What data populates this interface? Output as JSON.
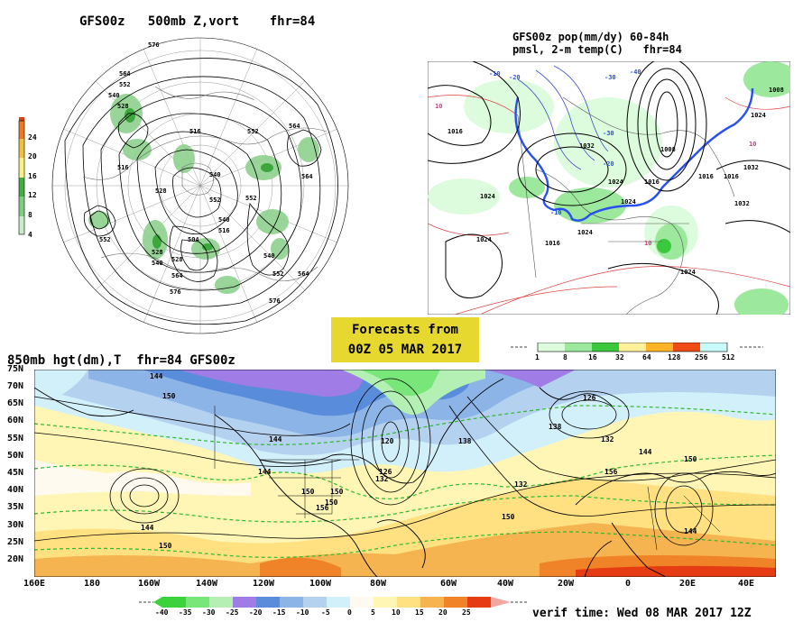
{
  "panel_500mb": {
    "title": "GFS00z   500mb Z,vort    fhr=84",
    "colorbar_ticks": [
      "24",
      "20",
      "16",
      "12",
      "8",
      "4"
    ],
    "contour_labels": [
      "576",
      "564",
      "552",
      "540",
      "528",
      "516",
      "504",
      "516",
      "528",
      "540",
      "552",
      "564",
      "576",
      "564",
      "552",
      "540",
      "528",
      "552",
      "552",
      "552",
      "540",
      "516",
      "528",
      "540",
      "564",
      "576",
      "564"
    ]
  },
  "panel_precip": {
    "title_line1": "GFS00z pop(mm/dy) 60-84h",
    "title_line2": "pmsl, 2-m temp(C)   fhr=84",
    "colorbar_ticks": [
      "1",
      "8",
      "16",
      "32",
      "64",
      "128",
      "256",
      "512"
    ],
    "colorbar_colors": [
      "#ddfcdd",
      "#9ce89c",
      "#3cc83c",
      "#fff09c",
      "#ffb428",
      "#f04b14",
      "#c8fafa"
    ],
    "contour_labels": [
      "1008",
      "1024",
      "1016",
      "1032",
      "1024",
      "1016",
      "1024",
      "1016",
      "1024",
      "1008",
      "1016",
      "1024",
      "1032",
      "1024",
      "1016",
      "1032",
      "1024"
    ],
    "temp_labels": [
      "-10",
      "-20",
      "-30",
      "-40",
      "-10",
      "10",
      "10",
      "10",
      "-20",
      "-30"
    ]
  },
  "banner": {
    "line1": "Forecasts from",
    "line2": "00Z 05 MAR 2017"
  },
  "panel_850mb": {
    "title": "850mb hgt(dm),T  fhr=84 GFS00z",
    "lat_labels": [
      "75N",
      "70N",
      "65N",
      "60N",
      "55N",
      "50N",
      "45N",
      "40N",
      "35N",
      "30N",
      "25N",
      "20N"
    ],
    "lon_labels": [
      "160E",
      "180",
      "160W",
      "140W",
      "120W",
      "100W",
      "80W",
      "60W",
      "40W",
      "20W",
      "0",
      "20E",
      "40E"
    ],
    "contour_labels": [
      "144",
      "150",
      "144",
      "150",
      "150",
      "144",
      "144",
      "132",
      "126",
      "120",
      "138",
      "132",
      "150",
      "138",
      "126",
      "132",
      "144",
      "150",
      "156",
      "150",
      "144",
      "150",
      "156"
    ],
    "colorbar_ticks": [
      "-40",
      "-35",
      "-30",
      "-25",
      "-20",
      "-15",
      "-10",
      "-5",
      "0",
      "5",
      "10",
      "15",
      "20",
      "25"
    ],
    "colorbar_colors": [
      "#3cd23c",
      "#78e678",
      "#b4f0b4",
      "#a07ce6",
      "#5a8cdc",
      "#8cb4e6",
      "#b4d2f0",
      "#d2f0fa",
      "#fffaf0",
      "#fff5b4",
      "#ffe182",
      "#f5b450",
      "#f08228",
      "#e63c14"
    ],
    "verif_time": "verif time: Wed 08 MAR 2017 12Z"
  }
}
